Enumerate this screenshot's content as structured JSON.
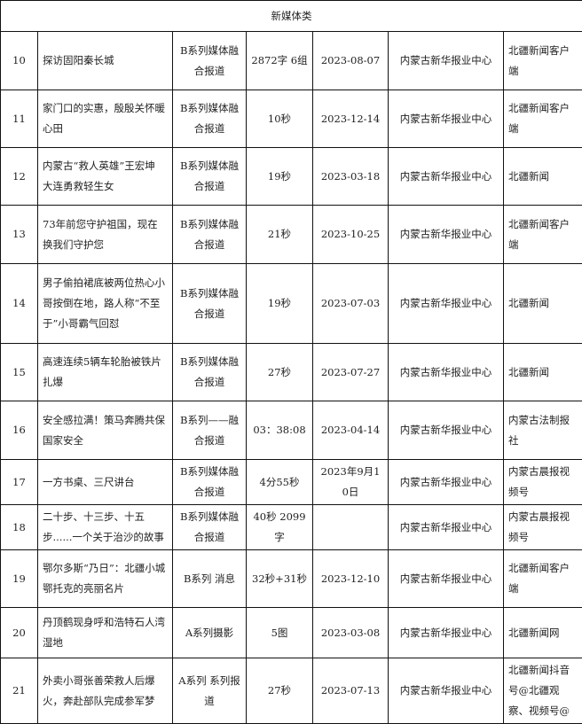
{
  "section_title": "新媒体类",
  "rows": [
    {
      "no": "10",
      "title": "探访固阳秦长城",
      "category": "B系列媒体融合报道",
      "length": "2872字 6组",
      "date": "2023-08-07",
      "publisher": "内蒙古新华报业中心",
      "platform": "北疆新闻客户端"
    },
    {
      "no": "11",
      "title": "家门口的实惠，殷殷关怀暖心田",
      "category": "B系列媒体融合报道",
      "length": "10秒",
      "date": "2023-12-14",
      "publisher": "内蒙古新华报业中心",
      "platform": "北疆新闻客户端"
    },
    {
      "no": "12",
      "title": "内蒙古“救人英雄”王宏坤 大连勇救轻生女",
      "category": "B系列媒体融合报道",
      "length": "19秒",
      "date": "2023-03-18",
      "publisher": "内蒙古新华报业中心",
      "platform": "北疆新闻"
    },
    {
      "no": "13",
      "title": "73年前您守护祖国，现在换我们守护您",
      "category": "B系列媒体融合报道",
      "length": "21秒",
      "date": "2023-10-25",
      "publisher": "内蒙古新华报业中心",
      "platform": "北疆新闻客户端"
    },
    {
      "no": "14",
      "title": "男子偷拍裙底被两位热心小哥按倒在地，路人称“不至于”小哥霸气回怼",
      "category": "B系列媒体融合报道",
      "length": "19秒",
      "date": "2023-07-03",
      "publisher": "内蒙古新华报业中心",
      "platform": "北疆新闻"
    },
    {
      "no": "15",
      "title": "高速连续5辆车轮胎被铁片扎爆",
      "category": "B系列媒体融合报道",
      "length": "27秒",
      "date": "2023-07-27",
      "publisher": "内蒙古新华报业中心",
      "platform": "北疆新闻"
    },
    {
      "no": "16",
      "title": "安全感拉满！策马奔腾共保国家安全",
      "category": "B系列——融合报道",
      "length": "03：38:08",
      "date": "2023-04-14",
      "publisher": "内蒙古新华报业中心",
      "platform": "内蒙古法制报社"
    },
    {
      "no": "17",
      "title": "一方书桌、三尺讲台",
      "category": "B系列媒体融合报道",
      "length": "4分55秒",
      "date": "2023年9月10日",
      "publisher": "内蒙古新华报业中心",
      "platform": "内蒙古晨报视频号"
    },
    {
      "no": "18",
      "title": "二十步、十三步、十五步......一个关于治沙的故事",
      "category": "B系列媒体融合报道",
      "length": "40秒 2099字",
      "date": "",
      "publisher": "内蒙古新华报业中心",
      "platform": "内蒙古晨报视频号"
    },
    {
      "no": "19",
      "title": "鄂尔多斯“乃日”：北疆小城鄂托克的亮丽名片",
      "category": "B系列 消息",
      "length": "32秒+31秒",
      "date": "2023-12-10",
      "publisher": "内蒙古新华报业中心",
      "platform": "北疆新闻客户端"
    },
    {
      "no": "20",
      "title": "丹顶鹤现身呼和浩特石人湾湿地",
      "category": "A系列摄影",
      "length": "5图",
      "date": "2023-03-08",
      "publisher": "内蒙古新华报业中心",
      "platform": "北疆新闻网"
    },
    {
      "no": "21",
      "title": "外卖小哥张善荣救人后爆火，奔赴部队完成参军梦",
      "category": "A系列 系列报道",
      "length": "27秒",
      "date": "2023-07-13",
      "publisher": "内蒙古新华报业中心",
      "platform": "北疆新闻抖音号@北疆观察、视频号@"
    }
  ]
}
